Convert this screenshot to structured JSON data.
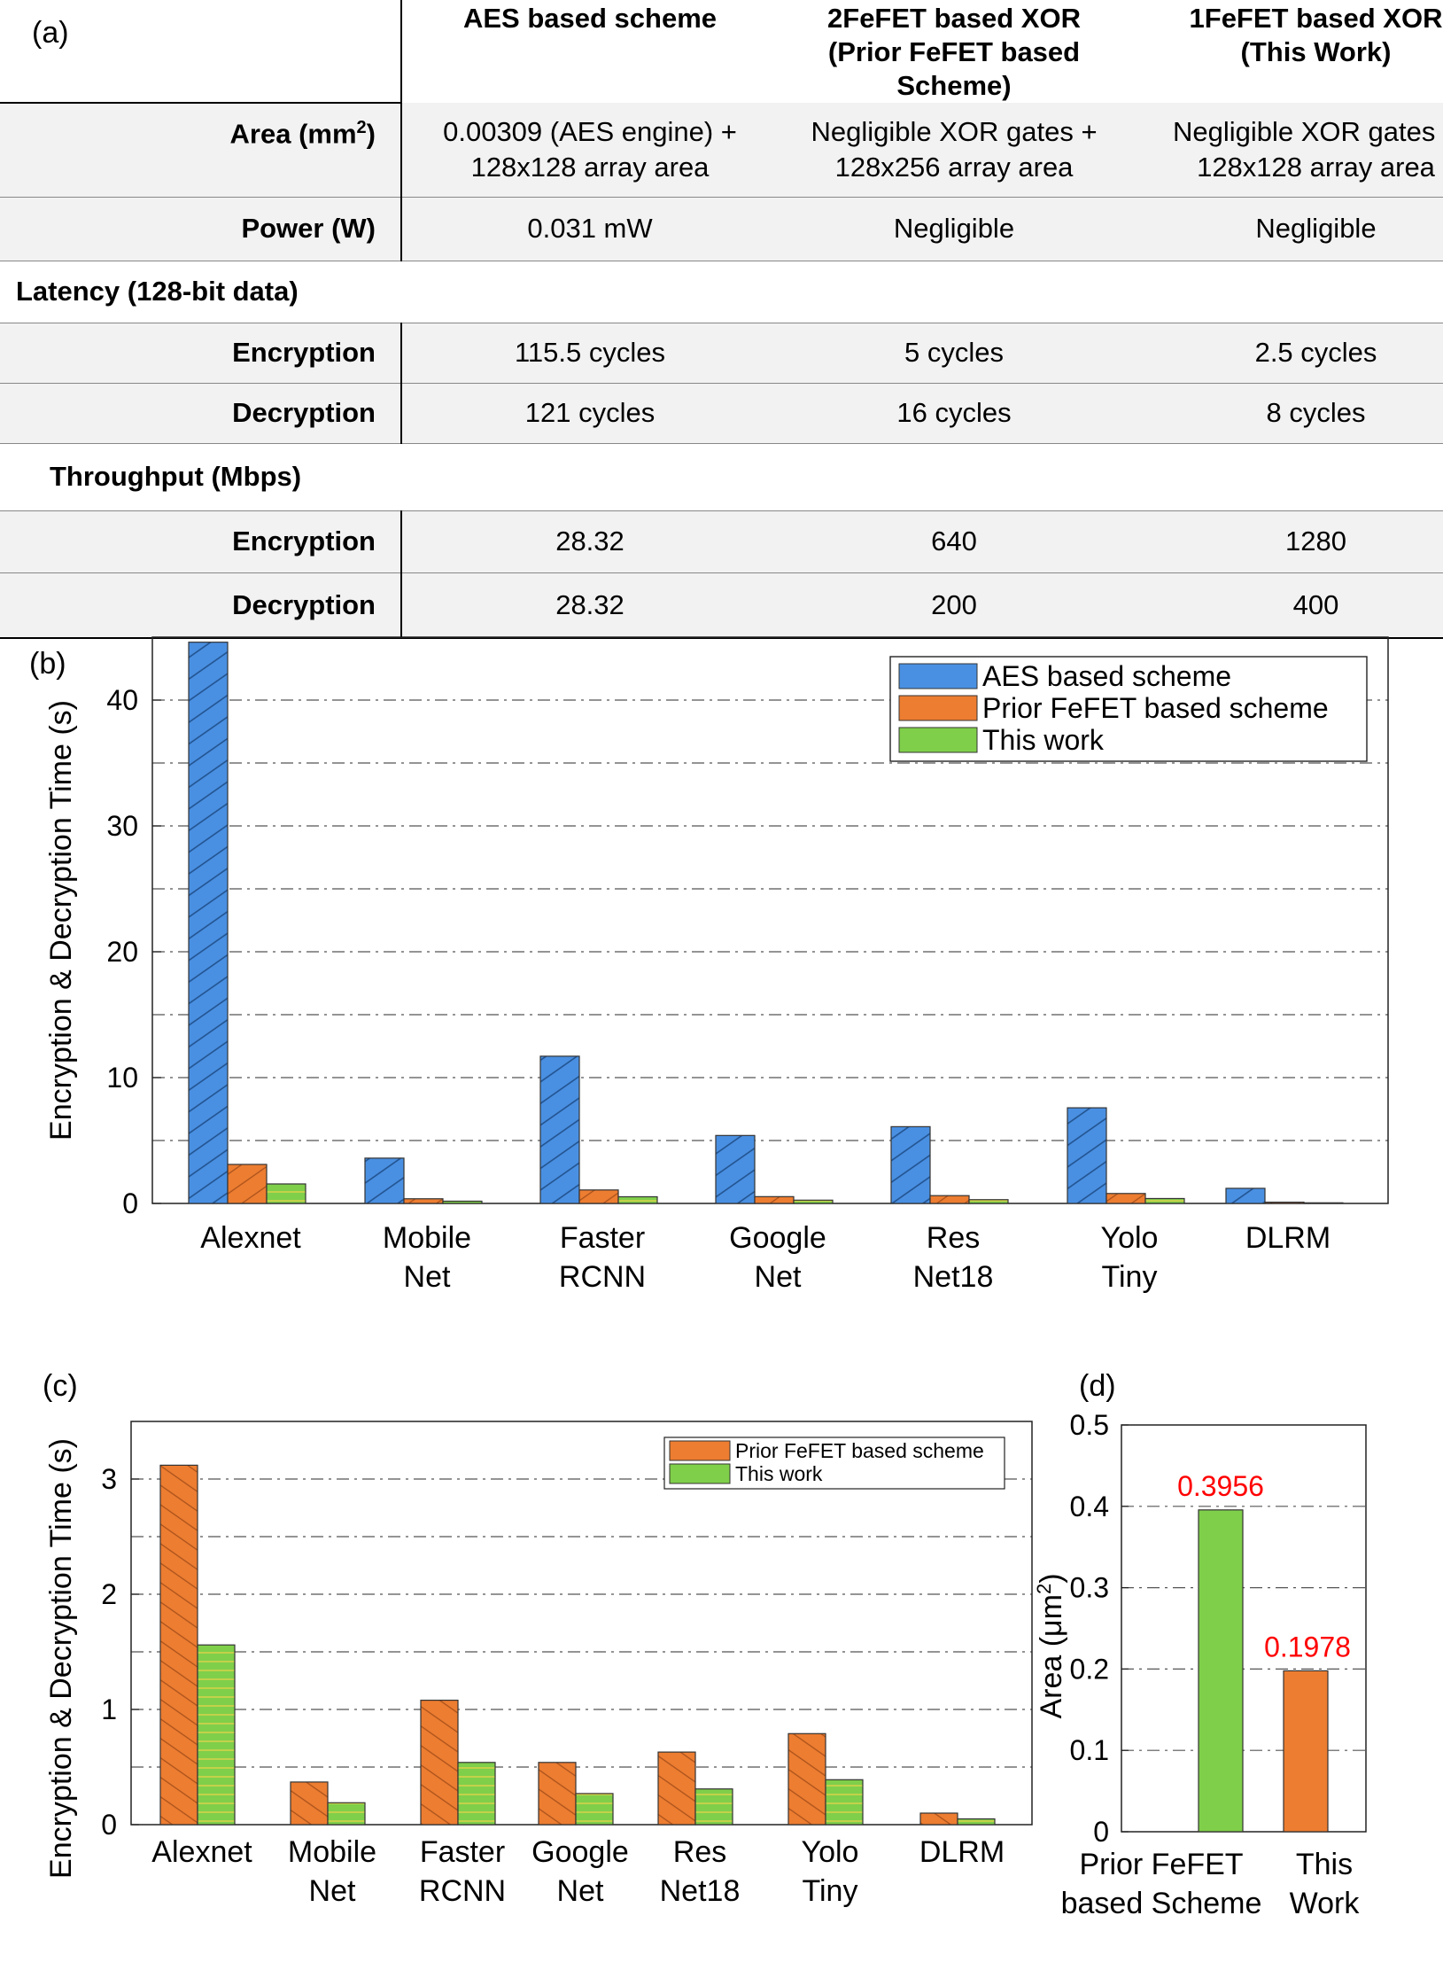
{
  "panel_labels": {
    "a": "(a)",
    "b": "(b)",
    "c": "(c)",
    "d": "(d)"
  },
  "table": {
    "headers": [
      "AES based scheme",
      "2FeFET based XOR",
      "(Prior FeFET based Scheme)",
      "1FeFET based XOR",
      "(This Work)"
    ],
    "rows": {
      "area": {
        "label": "Area (mm",
        "label_sup": "2",
        "label_end": ")",
        "c1": [
          "0.00309 (AES engine) +",
          "128x128 array area"
        ],
        "c2": [
          "Negligible XOR gates +",
          "128x256 array area"
        ],
        "c3": [
          "Negligible XOR gates +",
          "128x128 array area"
        ]
      },
      "power": {
        "label": "Power (W)",
        "c1": "0.031 mW",
        "c2": "Negligible",
        "c3": "Negligible"
      },
      "latency_section": "Latency (128-bit data)",
      "lat_enc": {
        "label": "Encryption",
        "c1": "115.5 cycles",
        "c2": "5 cycles",
        "c3": "2.5 cycles"
      },
      "lat_dec": {
        "label": "Decryption",
        "c1": "121 cycles",
        "c2": "16 cycles",
        "c3": "8 cycles"
      },
      "throughput_section": "Throughput (Mbps)",
      "thr_enc": {
        "label": "Encryption",
        "c1": "28.32",
        "c2": "640",
        "c3": "1280"
      },
      "thr_dec": {
        "label": "Decryption",
        "c1": "28.32",
        "c2": "200",
        "c3": "400"
      }
    }
  },
  "colors": {
    "aes": "#4a90e2",
    "prior": "#ed7d31",
    "this": "#7fcf4a",
    "red_label": "#ff0000"
  },
  "chart_data": [
    {
      "id": "b",
      "type": "bar",
      "categories": [
        [
          "Alexnet"
        ],
        [
          "Mobile",
          "Net"
        ],
        [
          "Faster",
          "RCNN"
        ],
        [
          "Google",
          "Net"
        ],
        [
          "Res",
          "Net18"
        ],
        [
          "Yolo",
          "Tiny"
        ],
        [
          "DLRM"
        ]
      ],
      "series": [
        {
          "name": "AES based scheme",
          "values": [
            44.6,
            3.6,
            11.7,
            5.4,
            6.1,
            7.6,
            1.2
          ]
        },
        {
          "name": "Prior FeFET based scheme",
          "values": [
            3.1,
            0.37,
            1.07,
            0.54,
            0.62,
            0.79,
            0.1
          ]
        },
        {
          "name": "This work",
          "values": [
            1.55,
            0.18,
            0.53,
            0.26,
            0.3,
            0.39,
            0.05
          ]
        }
      ],
      "ylabel": "Encryption & Decryption Time (s)",
      "ylim": [
        0,
        45
      ],
      "yticks": [
        0,
        10,
        20,
        30,
        40
      ],
      "grid_lines": [
        5,
        10,
        15,
        20,
        25,
        30,
        35,
        40
      ],
      "legend": "top-right"
    },
    {
      "id": "c",
      "type": "bar",
      "categories": [
        [
          "Alexnet"
        ],
        [
          "Mobile",
          "Net"
        ],
        [
          "Faster",
          "RCNN"
        ],
        [
          "Google",
          "Net"
        ],
        [
          "Res",
          "Net18"
        ],
        [
          "Yolo",
          "Tiny"
        ],
        [
          "DLRM"
        ]
      ],
      "series": [
        {
          "name": "Prior FeFET based scheme",
          "values": [
            3.12,
            0.37,
            1.08,
            0.54,
            0.63,
            0.79,
            0.1
          ]
        },
        {
          "name": "This work",
          "values": [
            1.56,
            0.19,
            0.54,
            0.27,
            0.31,
            0.39,
            0.05
          ]
        }
      ],
      "ylabel": "Encryption & Decryption Time (s)",
      "ylim": [
        0,
        3.5
      ],
      "yticks": [
        0,
        1,
        2,
        3
      ],
      "grid_lines": [
        0.5,
        1,
        1.5,
        2,
        2.5,
        3
      ],
      "legend": "top-right"
    },
    {
      "id": "d",
      "type": "bar",
      "categories": [
        [
          "Prior FeFET",
          "based Scheme"
        ],
        [
          "This",
          "Work"
        ]
      ],
      "values": [
        0.3956,
        0.1978
      ],
      "data_labels": [
        "0.3956",
        "0.1978"
      ],
      "ylabel_main": "Area (μm",
      "ylabel_sup": "2",
      "ylabel_end": ")",
      "ylim": [
        0,
        0.5
      ],
      "yticks": [
        "0",
        "0.1",
        "0.2",
        "0.3",
        "0.4",
        "0.5"
      ],
      "ytick_values": [
        0,
        0.1,
        0.2,
        0.3,
        0.4,
        0.5
      ]
    }
  ]
}
